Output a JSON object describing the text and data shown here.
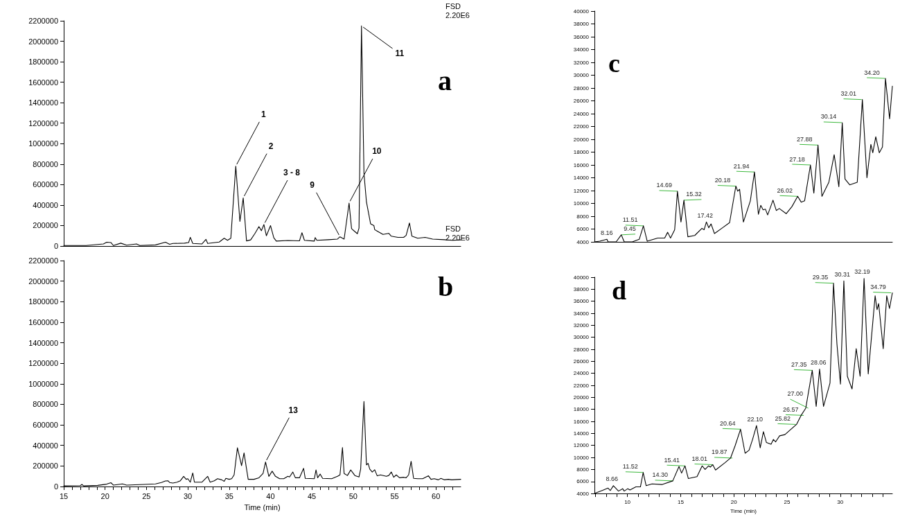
{
  "chart_data": [
    {
      "type": "line",
      "title": "a",
      "annotations": [
        "FSD\n2.20E6",
        {
          "text": "1",
          "x": 35.8,
          "y": 780000
        },
        {
          "text": "2",
          "x": 36.7,
          "y": 470000
        },
        {
          "text": "3 - 8",
          "x": 39.2,
          "y": 210000
        },
        {
          "text": "9",
          "x": 48.4,
          "y": 90000
        },
        {
          "text": "10",
          "x": 49.5,
          "y": 420000
        },
        {
          "text": "11",
          "x": 51,
          "y": 2150000
        }
      ],
      "series": [
        {
          "color": "#000000",
          "x": [
            15,
            17.7,
            19.8,
            20.2,
            20.7,
            21,
            21.9,
            22.6,
            23.8,
            24.2,
            26.1,
            27.3,
            27.8,
            28.2,
            29.6,
            30.1,
            30.3,
            30.6,
            31.7,
            32.2,
            32.4,
            33.8,
            34.4,
            34.8,
            35.2,
            35.8,
            36.3,
            36.7,
            37.1,
            37.6,
            38.1,
            38.6,
            38.9,
            39.2,
            39.5,
            40,
            40.4,
            40.7,
            42.1,
            43.5,
            43.8,
            44.1,
            45.3,
            45.4,
            45.6,
            47,
            48.1,
            48.4,
            48.9,
            49.5,
            49.8,
            50.5,
            50.7,
            51,
            51.3,
            51.6,
            52.1,
            52.5,
            52.6,
            52.9,
            53.6,
            54.3,
            54.6,
            55.4,
            56.1,
            56.4,
            56.8,
            57.1,
            57.8,
            58.7,
            59.6,
            61,
            62,
            63
          ],
          "values": [
            5000,
            5000,
            20000,
            37000,
            34000,
            5000,
            28000,
            8000,
            20000,
            5000,
            11000,
            37000,
            17000,
            25000,
            28000,
            34000,
            85000,
            25000,
            20000,
            65000,
            25000,
            39000,
            76000,
            56000,
            76000,
            780000,
            240000,
            470000,
            50000,
            60000,
            120000,
            190000,
            150000,
            210000,
            100000,
            200000,
            80000,
            48000,
            54000,
            51000,
            130000,
            56000,
            48000,
            82000,
            56000,
            62000,
            68000,
            90000,
            68000,
            420000,
            170000,
            120000,
            175000,
            2150000,
            710000,
            430000,
            217000,
            200000,
            160000,
            146000,
            113000,
            124000,
            96000,
            85000,
            85000,
            104000,
            225000,
            96000,
            76000,
            85000,
            68000,
            62000,
            56000,
            60000
          ]
        }
      ],
      "xlim": [
        15,
        63
      ],
      "ylim": [
        0,
        2200000
      ],
      "yticks": [
        0,
        200000,
        400000,
        600000,
        800000,
        1000000,
        1200000,
        1400000,
        1600000,
        1800000,
        2000000,
        2200000
      ],
      "tick_labels": "y"
    },
    {
      "type": "line",
      "title": "b",
      "xlabel": "Time (min)",
      "annotations": [
        "FSD\n2.20E6",
        {
          "text": "13",
          "x": 39.4,
          "y": 239000
        }
      ],
      "series": [
        {
          "color": "#000000",
          "x": [
            15,
            17,
            17.2,
            17.4,
            19.1,
            20.2,
            20.7,
            21,
            22.1,
            22.6,
            24.7,
            26.1,
            26.8,
            27.3,
            27.6,
            27.8,
            28.2,
            28.7,
            29.1,
            29.5,
            29.8,
            30,
            30.3,
            30.6,
            30.8,
            31.7,
            32.4,
            32.7,
            33.2,
            33.6,
            34.1,
            34.4,
            34.6,
            35,
            35.3,
            35.6,
            36,
            36.5,
            36.8,
            37.3,
            38,
            38.6,
            39.1,
            39.4,
            39.8,
            40.2,
            40.6,
            41.1,
            41.6,
            42.1,
            42.3,
            42.7,
            43,
            43.5,
            44,
            44.2,
            45.3,
            45.5,
            45.7,
            46,
            46.3,
            47.4,
            48.1,
            48.4,
            48.7,
            48.9,
            49.3,
            49.7,
            50.2,
            50.7,
            50.9,
            51.3,
            51.6,
            51.8,
            52,
            52.3,
            52.6,
            52.9,
            53.3,
            54,
            54.3,
            54.6,
            54.9,
            55.2,
            55.6,
            56.1,
            56.4,
            56.7,
            57,
            57.3,
            57.8,
            58.4,
            59.1,
            59.4,
            59.8,
            60.3,
            60.6,
            61,
            61.5,
            61.9,
            63
          ],
          "values": [
            6000,
            8000,
            20000,
            6000,
            11000,
            23000,
            37000,
            14000,
            25000,
            14000,
            20000,
            25000,
            39000,
            54000,
            56000,
            39000,
            34000,
            42000,
            56000,
            99000,
            70000,
            76000,
            42000,
            132000,
            42000,
            42000,
            99000,
            42000,
            56000,
            76000,
            65000,
            51000,
            79000,
            70000,
            76000,
            113000,
            377000,
            203000,
            327000,
            70000,
            70000,
            85000,
            127000,
            239000,
            99000,
            149000,
            99000,
            76000,
            76000,
            99000,
            93000,
            141000,
            85000,
            85000,
            177000,
            79000,
            76000,
            161000,
            85000,
            121000,
            79000,
            76000,
            99000,
            113000,
            380000,
            127000,
            107000,
            161000,
            107000,
            93000,
            169000,
            828000,
            211000,
            225000,
            169000,
            141000,
            163000,
            104000,
            113000,
            99000,
            107000,
            141000,
            90000,
            113000,
            85000,
            90000,
            85000,
            113000,
            245000,
            79000,
            76000,
            76000,
            104000,
            70000,
            76000,
            65000,
            79000,
            65000,
            70000,
            65000,
            70000
          ]
        }
      ],
      "xlim": [
        15,
        63
      ],
      "xticks": [
        15,
        {
          "value": 16,
          "label": null
        },
        {
          "value": 17,
          "label": null
        },
        {
          "value": 18,
          "label": null
        },
        {
          "value": 19,
          "label": null
        },
        20,
        {
          "value": 21,
          "label": null
        },
        {
          "value": 22,
          "label": null
        },
        {
          "value": 23,
          "label": null
        },
        {
          "value": 24,
          "label": null
        },
        25,
        {
          "value": 26,
          "label": null
        },
        {
          "value": 27,
          "label": null
        },
        {
          "value": 28,
          "label": null
        },
        {
          "value": 29,
          "label": null
        },
        30,
        {
          "value": 31,
          "label": null
        },
        {
          "value": 32,
          "label": null
        },
        {
          "value": 33,
          "label": null
        },
        {
          "value": 34,
          "label": null
        },
        35,
        {
          "value": 36,
          "label": null
        },
        {
          "value": 37,
          "label": null
        },
        {
          "value": 38,
          "label": null
        },
        {
          "value": 39,
          "label": null
        },
        40,
        {
          "value": 41,
          "label": null
        },
        {
          "value": 42,
          "label": null
        },
        {
          "value": 43,
          "label": null
        },
        {
          "value": 44,
          "label": null
        },
        45,
        {
          "value": 46,
          "label": null
        },
        {
          "value": 47,
          "label": null
        },
        {
          "value": 48,
          "label": null
        },
        {
          "value": 49,
          "label": null
        },
        50,
        {
          "value": 51,
          "label": null
        },
        {
          "value": 52,
          "label": null
        },
        {
          "value": 53,
          "label": null
        },
        {
          "value": 54,
          "label": null
        },
        55,
        {
          "value": 56,
          "label": null
        },
        {
          "value": 57,
          "label": null
        },
        {
          "value": 58,
          "label": null
        },
        {
          "value": 59,
          "label": null
        },
        60,
        {
          "value": 61,
          "label": null
        },
        {
          "value": 62,
          "label": null
        }
      ],
      "ylim": [
        0,
        2200000
      ],
      "yticks": [
        0,
        200000,
        400000,
        600000,
        800000,
        1000000,
        1200000,
        1400000,
        1600000,
        1800000,
        2000000,
        2200000
      ]
    },
    {
      "type": "line",
      "title": "c",
      "annotations": [
        {
          "text": "8.16",
          "x": 8.16,
          "y": 4400
        },
        {
          "text": "9.45",
          "x": 9.45,
          "y": 5100
        },
        {
          "text": "11.51",
          "x": 11.51,
          "y": 6500
        },
        {
          "text": "14.69",
          "x": 14.69,
          "y": 11900
        },
        {
          "text": "15.32",
          "x": 15.32,
          "y": 10500
        },
        {
          "text": "17.42",
          "x": 17.42,
          "y": 7100
        },
        {
          "text": "20.18",
          "x": 20.18,
          "y": 12700
        },
        {
          "text": "21.94",
          "x": 21.94,
          "y": 14900
        },
        {
          "text": "26.02",
          "x": 26.02,
          "y": 11100
        },
        {
          "text": "27.18",
          "x": 27.18,
          "y": 16000
        },
        {
          "text": "27.88",
          "x": 27.88,
          "y": 19100
        },
        {
          "text": "30.14",
          "x": 30.14,
          "y": 22600
        },
        {
          "text": "32.01",
          "x": 32.01,
          "y": 26200
        },
        {
          "text": "34.20",
          "x": 34.2,
          "y": 29500
        }
      ],
      "series": [
        {
          "color": "#000000",
          "x": [
            6.9,
            7.4,
            8.07,
            8.18,
            8.94,
            9.42,
            9.7,
            10.46,
            11.11,
            11.5,
            11.86,
            12.84,
            13.5,
            13.78,
            14.05,
            14.44,
            14.7,
            15.03,
            15.31,
            15.68,
            16.33,
            16.99,
            17.21,
            17.42,
            17.64,
            17.86,
            18.18,
            18.94,
            19.6,
            20.19,
            20.36,
            20.54,
            20.9,
            21.55,
            21.94,
            22.31,
            22.53,
            22.75,
            22.97,
            23.18,
            23.68,
            23.99,
            24.27,
            24.92,
            25.46,
            26,
            26.33,
            26.65,
            27.2,
            27.52,
            27.91,
            28.28,
            28.93,
            29.43,
            29.87,
            30.19,
            30.45,
            30.89,
            31.6,
            32.08,
            32.51,
            32.88,
            33.06,
            33.34,
            33.67,
            33.97,
            34.25,
            34.64,
            34.9
          ],
          "values": [
            4000,
            4100,
            4400,
            4000,
            4000,
            5100,
            4000,
            4000,
            4400,
            6500,
            4100,
            4600,
            4600,
            5500,
            4600,
            5900,
            11900,
            7100,
            10500,
            4800,
            5000,
            6100,
            5900,
            7100,
            6200,
            6800,
            5300,
            6200,
            7000,
            12700,
            11900,
            12200,
            7100,
            10400,
            14900,
            8300,
            9700,
            9000,
            9100,
            8200,
            10500,
            8900,
            9200,
            8400,
            9500,
            11100,
            10200,
            10400,
            16000,
            11600,
            19100,
            11100,
            13300,
            17600,
            12600,
            22600,
            13800,
            12900,
            13300,
            26200,
            14000,
            19200,
            17900,
            20400,
            17900,
            18800,
            29500,
            23200,
            28300
          ]
        }
      ],
      "xlim": [
        6.9,
        34.9
      ],
      "ylim": [
        4000,
        40000
      ],
      "yticks": [
        4000,
        6000,
        8000,
        10000,
        12000,
        14000,
        16000,
        18000,
        20000,
        22000,
        24000,
        26000,
        28000,
        30000,
        32000,
        34000,
        36000,
        38000,
        40000
      ],
      "tick_labels": "y"
    },
    {
      "type": "line",
      "title": "d",
      "xlabel": "Time (min)",
      "annotations": [
        {
          "text": "8.66",
          "x": 8.66,
          "y": 5300
        },
        {
          "text": "11.52",
          "x": 11.52,
          "y": 7500
        },
        {
          "text": "14.30",
          "x": 14.3,
          "y": 6100
        },
        {
          "text": "15.41",
          "x": 15.41,
          "y": 8600
        },
        {
          "text": "18.01",
          "x": 18.01,
          "y": 8800
        },
        {
          "text": "19.87",
          "x": 19.87,
          "y": 9900
        },
        {
          "text": "20.64",
          "x": 20.64,
          "y": 14700
        },
        {
          "text": "22.10",
          "x": 22.1,
          "y": 15300
        },
        {
          "text": "25.82",
          "x": 25.82,
          "y": 15500
        },
        {
          "text": "26.57",
          "x": 26.57,
          "y": 17000
        },
        {
          "text": "27.00",
          "x": 27,
          "y": 18200
        },
        {
          "text": "27.35",
          "x": 27.35,
          "y": 24500
        },
        {
          "text": "28.06",
          "x": 28.06,
          "y": 24700
        },
        {
          "text": "29.35",
          "x": 29.35,
          "y": 39000
        },
        {
          "text": "30.31",
          "x": 30.31,
          "y": 39400
        },
        {
          "text": "32.19",
          "x": 32.19,
          "y": 39800
        },
        {
          "text": "34.79",
          "x": 34.79,
          "y": 37400
        }
      ],
      "series": [
        {
          "color": "#000000",
          "x": [
            6.9,
            7.63,
            8.18,
            8.39,
            8.68,
            9.16,
            9.55,
            9.7,
            10.03,
            10.24,
            10.79,
            11.22,
            11.48,
            11.76,
            12.31,
            13.28,
            14.26,
            14.85,
            15.09,
            15.41,
            15.72,
            16.54,
            17.02,
            17.3,
            17.63,
            17.8,
            18.02,
            18.28,
            19.15,
            19.69,
            20.13,
            20.63,
            21.06,
            21.43,
            21.76,
            22.13,
            22.48,
            22.78,
            23.06,
            23.5,
            23.72,
            23.93,
            24.3,
            24.8,
            25.24,
            25.89,
            26.32,
            26.76,
            26.98,
            27.37,
            27.74,
            28.06,
            28.43,
            29.04,
            29.37,
            29.69,
            30.02,
            30.34,
            30.67,
            31.11,
            31.5,
            31.87,
            32.24,
            32.63,
            33.28,
            33.46,
            33.61,
            34.04,
            34.37,
            34.63,
            34.9
          ],
          "values": [
            4000,
            4500,
            4900,
            4500,
            5300,
            4400,
            4800,
            4400,
            4800,
            4600,
            5100,
            5100,
            7500,
            5300,
            5600,
            5500,
            6100,
            8500,
            7400,
            8600,
            6500,
            6800,
            8600,
            8000,
            8600,
            8400,
            8800,
            7900,
            9100,
            9900,
            12000,
            14700,
            10700,
            11200,
            13000,
            15300,
            11600,
            14300,
            12500,
            12200,
            13000,
            12600,
            13600,
            13800,
            14500,
            15500,
            17000,
            18200,
            20500,
            24500,
            18500,
            24700,
            18500,
            22400,
            39000,
            28900,
            22200,
            39400,
            23500,
            21400,
            28100,
            23500,
            39800,
            23900,
            36900,
            34600,
            35600,
            28100,
            36900,
            34800,
            37400
          ]
        }
      ],
      "xlim": [
        6.9,
        34.9
      ],
      "xticks": [
        {
          "value": 7,
          "label": null
        },
        {
          "value": 8,
          "label": null
        },
        {
          "value": 9,
          "label": null
        },
        10,
        {
          "value": 11,
          "label": null
        },
        {
          "value": 12,
          "label": null
        },
        {
          "value": 13,
          "label": null
        },
        {
          "value": 14,
          "label": null
        },
        15,
        {
          "value": 16,
          "label": null
        },
        {
          "value": 17,
          "label": null
        },
        {
          "value": 18,
          "label": null
        },
        {
          "value": 19,
          "label": null
        },
        20,
        {
          "value": 21,
          "label": null
        },
        {
          "value": 22,
          "label": null
        },
        {
          "value": 23,
          "label": null
        },
        {
          "value": 24,
          "label": null
        },
        25,
        {
          "value": 26,
          "label": null
        },
        {
          "value": 27,
          "label": null
        },
        {
          "value": 28,
          "label": null
        },
        {
          "value": 29,
          "label": null
        },
        30,
        {
          "value": 31,
          "label": null
        },
        {
          "value": 32,
          "label": null
        },
        {
          "value": 33,
          "label": null
        },
        {
          "value": 34,
          "label": null
        }
      ],
      "ylim": [
        4000,
        40000
      ],
      "yticks": [
        4000,
        6000,
        8000,
        10000,
        12000,
        14000,
        16000,
        18000,
        20000,
        22000,
        24000,
        26000,
        28000,
        30000,
        32000,
        34000,
        36000,
        38000,
        40000
      ]
    }
  ]
}
